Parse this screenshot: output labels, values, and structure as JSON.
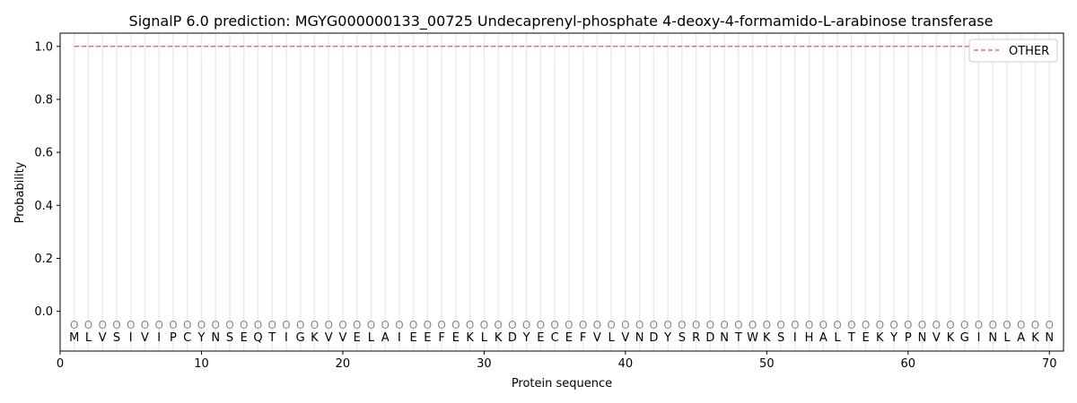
{
  "chart_data": {
    "type": "line",
    "title": "SignalP 6.0 prediction: MGYG000000133_00725 Undecaprenyl-phosphate 4-deoxy-4-formamido-L-arabinose transferase",
    "xlabel": "Protein sequence",
    "ylabel": "Probability",
    "xlim": [
      0,
      71
    ],
    "ylim": [
      -0.15,
      1.05
    ],
    "xticks": [
      0,
      10,
      20,
      30,
      40,
      50,
      60,
      70
    ],
    "yticks": [
      0.0,
      0.2,
      0.4,
      0.6,
      0.8,
      1.0
    ],
    "ytick_labels": [
      "0.0",
      "0.2",
      "0.4",
      "0.6",
      "0.8",
      "1.0"
    ],
    "sequence": [
      "M",
      "L",
      "V",
      "S",
      "I",
      "V",
      "I",
      "P",
      "C",
      "Y",
      "N",
      "S",
      "E",
      "Q",
      "T",
      "I",
      "G",
      "K",
      "V",
      "V",
      "E",
      "L",
      "A",
      "I",
      "E",
      "E",
      "F",
      "E",
      "K",
      "L",
      "K",
      "D",
      "Y",
      "E",
      "C",
      "E",
      "F",
      "V",
      "L",
      "V",
      "N",
      "D",
      "Y",
      "S",
      "R",
      "D",
      "N",
      "T",
      "W",
      "K",
      "S",
      "I",
      "H",
      "A",
      "L",
      "T",
      "E",
      "K",
      "Y",
      "P",
      "N",
      "V",
      "K",
      "G",
      "I",
      "N",
      "L",
      "A",
      "K",
      "N"
    ],
    "position_labels": "O",
    "series": [
      {
        "name": "OTHER",
        "color": "#f07070",
        "style": "dashed",
        "x_range": [
          1,
          70
        ],
        "value": 1.0
      }
    ],
    "legend": "top-right",
    "grid": "vertical lines at each residue"
  }
}
